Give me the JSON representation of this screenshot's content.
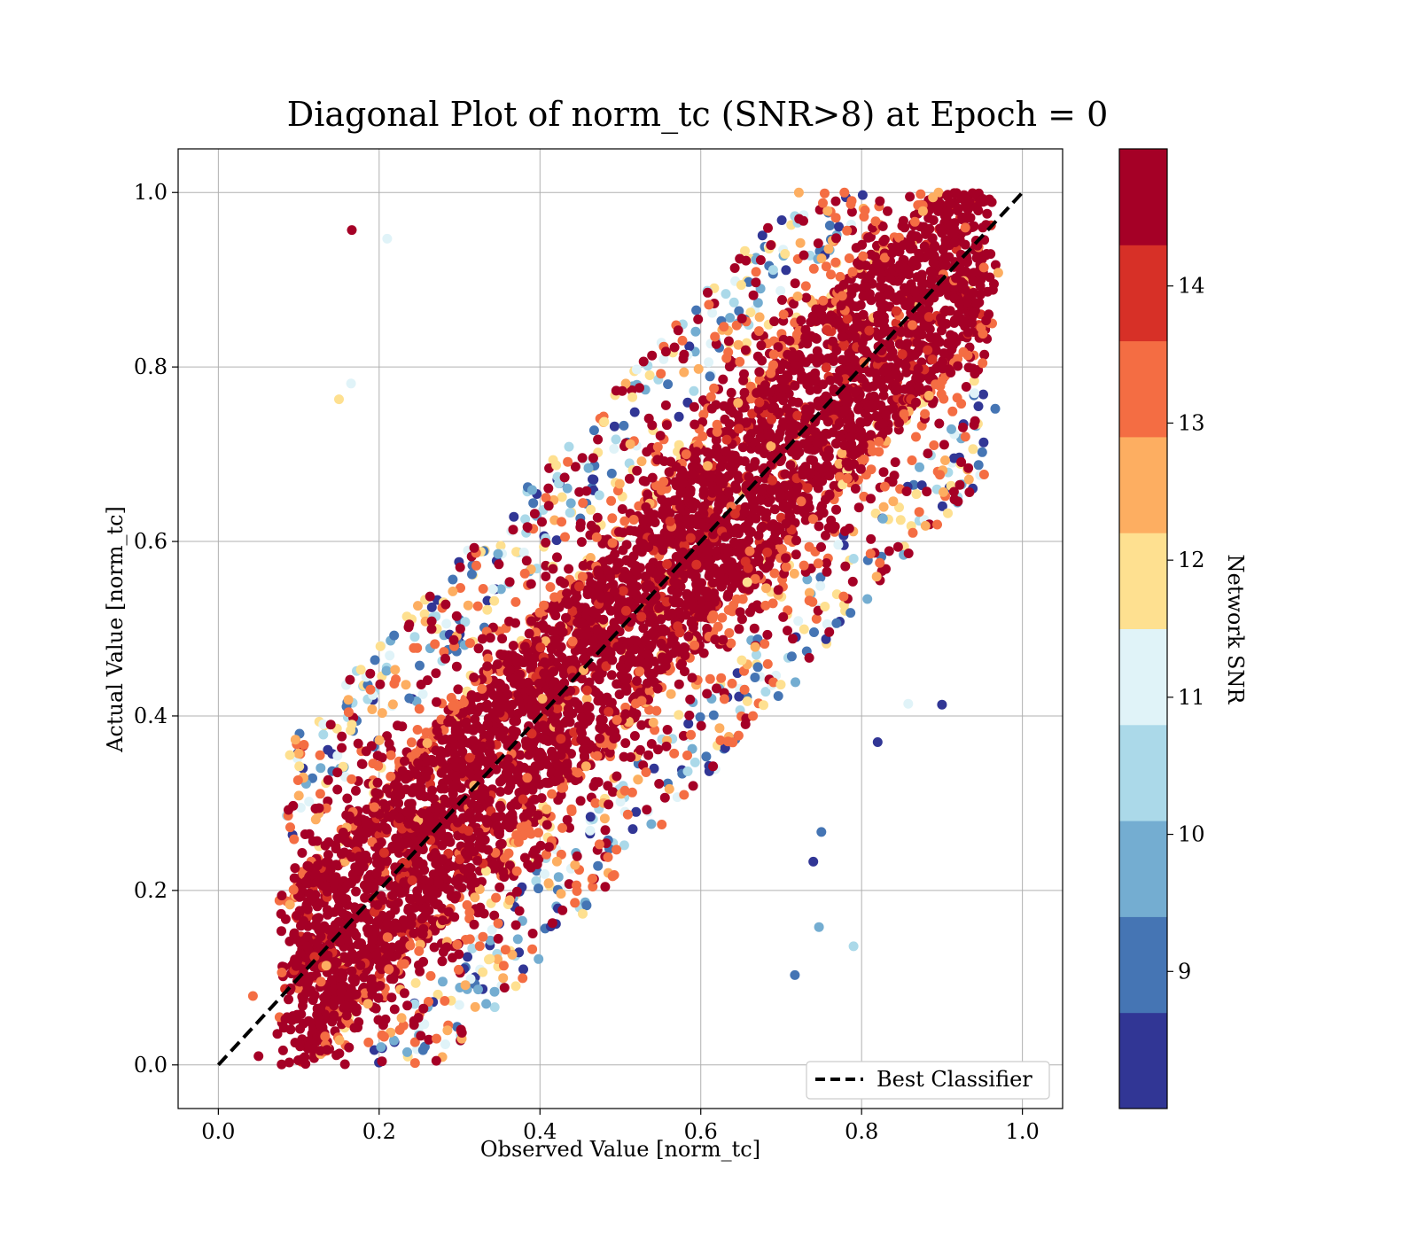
{
  "chart_data": {
    "type": "scatter",
    "title": "Diagonal Plot of norm_tc (SNR>8) at Epoch = 0",
    "xlabel": "Observed Value [norm_tc]",
    "ylabel": "Actual Value [norm_tc]",
    "xlim": [
      -0.05,
      1.05
    ],
    "ylim": [
      -0.05,
      1.05
    ],
    "xticks": [
      0.0,
      0.2,
      0.4,
      0.6,
      0.8,
      1.0
    ],
    "yticks": [
      0.0,
      0.2,
      0.4,
      0.6,
      0.8,
      1.0
    ],
    "xtick_labels": [
      "0.0",
      "0.2",
      "0.4",
      "0.6",
      "0.8",
      "1.0"
    ],
    "ytick_labels": [
      "0.0",
      "0.2",
      "0.4",
      "0.6",
      "0.8",
      "1.0"
    ],
    "grid": true,
    "legend": {
      "placement": "lower-right",
      "entries": [
        {
          "label": "Best Classifier",
          "style": "dashed",
          "color": "#000000"
        }
      ]
    },
    "reference_line": {
      "label": "Best Classifier",
      "x": [
        0.0,
        1.0
      ],
      "y": [
        0.0,
        1.0
      ]
    },
    "colorbar": {
      "label": "Network SNR",
      "range": [
        8,
        15
      ],
      "ticks": [
        9,
        10,
        11,
        12,
        13,
        14
      ],
      "tick_labels": [
        "9",
        "10",
        "11",
        "12",
        "13",
        "14"
      ],
      "bin_colors": [
        "#313695",
        "#4575b4",
        "#74add1",
        "#abd9e9",
        "#e0f3f8",
        "#fee090",
        "#fdae61",
        "#f46d43",
        "#d73027",
        "#a50026"
      ]
    },
    "point_cloud": {
      "description_source": "visible scatter band",
      "band_x_range": [
        0.05,
        0.97
      ],
      "band_y_range": [
        0.0,
        1.0
      ],
      "band_half_width_observed": 0.28,
      "core_half_width_observed": 0.12,
      "outliers": [
        {
          "x": 0.166,
          "y": 0.957,
          "snr": 14.5
        },
        {
          "x": 0.15,
          "y": 0.763,
          "snr": 12.2
        },
        {
          "x": 0.165,
          "y": 0.781,
          "snr": 11.0
        },
        {
          "x": 0.21,
          "y": 0.947,
          "snr": 11.4
        },
        {
          "x": 0.9,
          "y": 0.413,
          "snr": 8.2
        },
        {
          "x": 0.82,
          "y": 0.37,
          "snr": 8.5
        },
        {
          "x": 0.717,
          "y": 0.103,
          "snr": 8.8
        },
        {
          "x": 0.79,
          "y": 0.136,
          "snr": 10.6
        },
        {
          "x": 0.747,
          "y": 0.158,
          "snr": 9.6
        },
        {
          "x": 0.05,
          "y": 0.01,
          "snr": 14.5
        },
        {
          "x": 0.043,
          "y": 0.079,
          "snr": 13.6
        },
        {
          "x": 0.97,
          "y": 0.908,
          "snr": 12.4
        },
        {
          "x": 0.858,
          "y": 0.414,
          "snr": 11.2
        },
        {
          "x": 0.75,
          "y": 0.267,
          "snr": 9.2
        },
        {
          "x": 0.74,
          "y": 0.233,
          "snr": 8.4
        }
      ]
    }
  }
}
